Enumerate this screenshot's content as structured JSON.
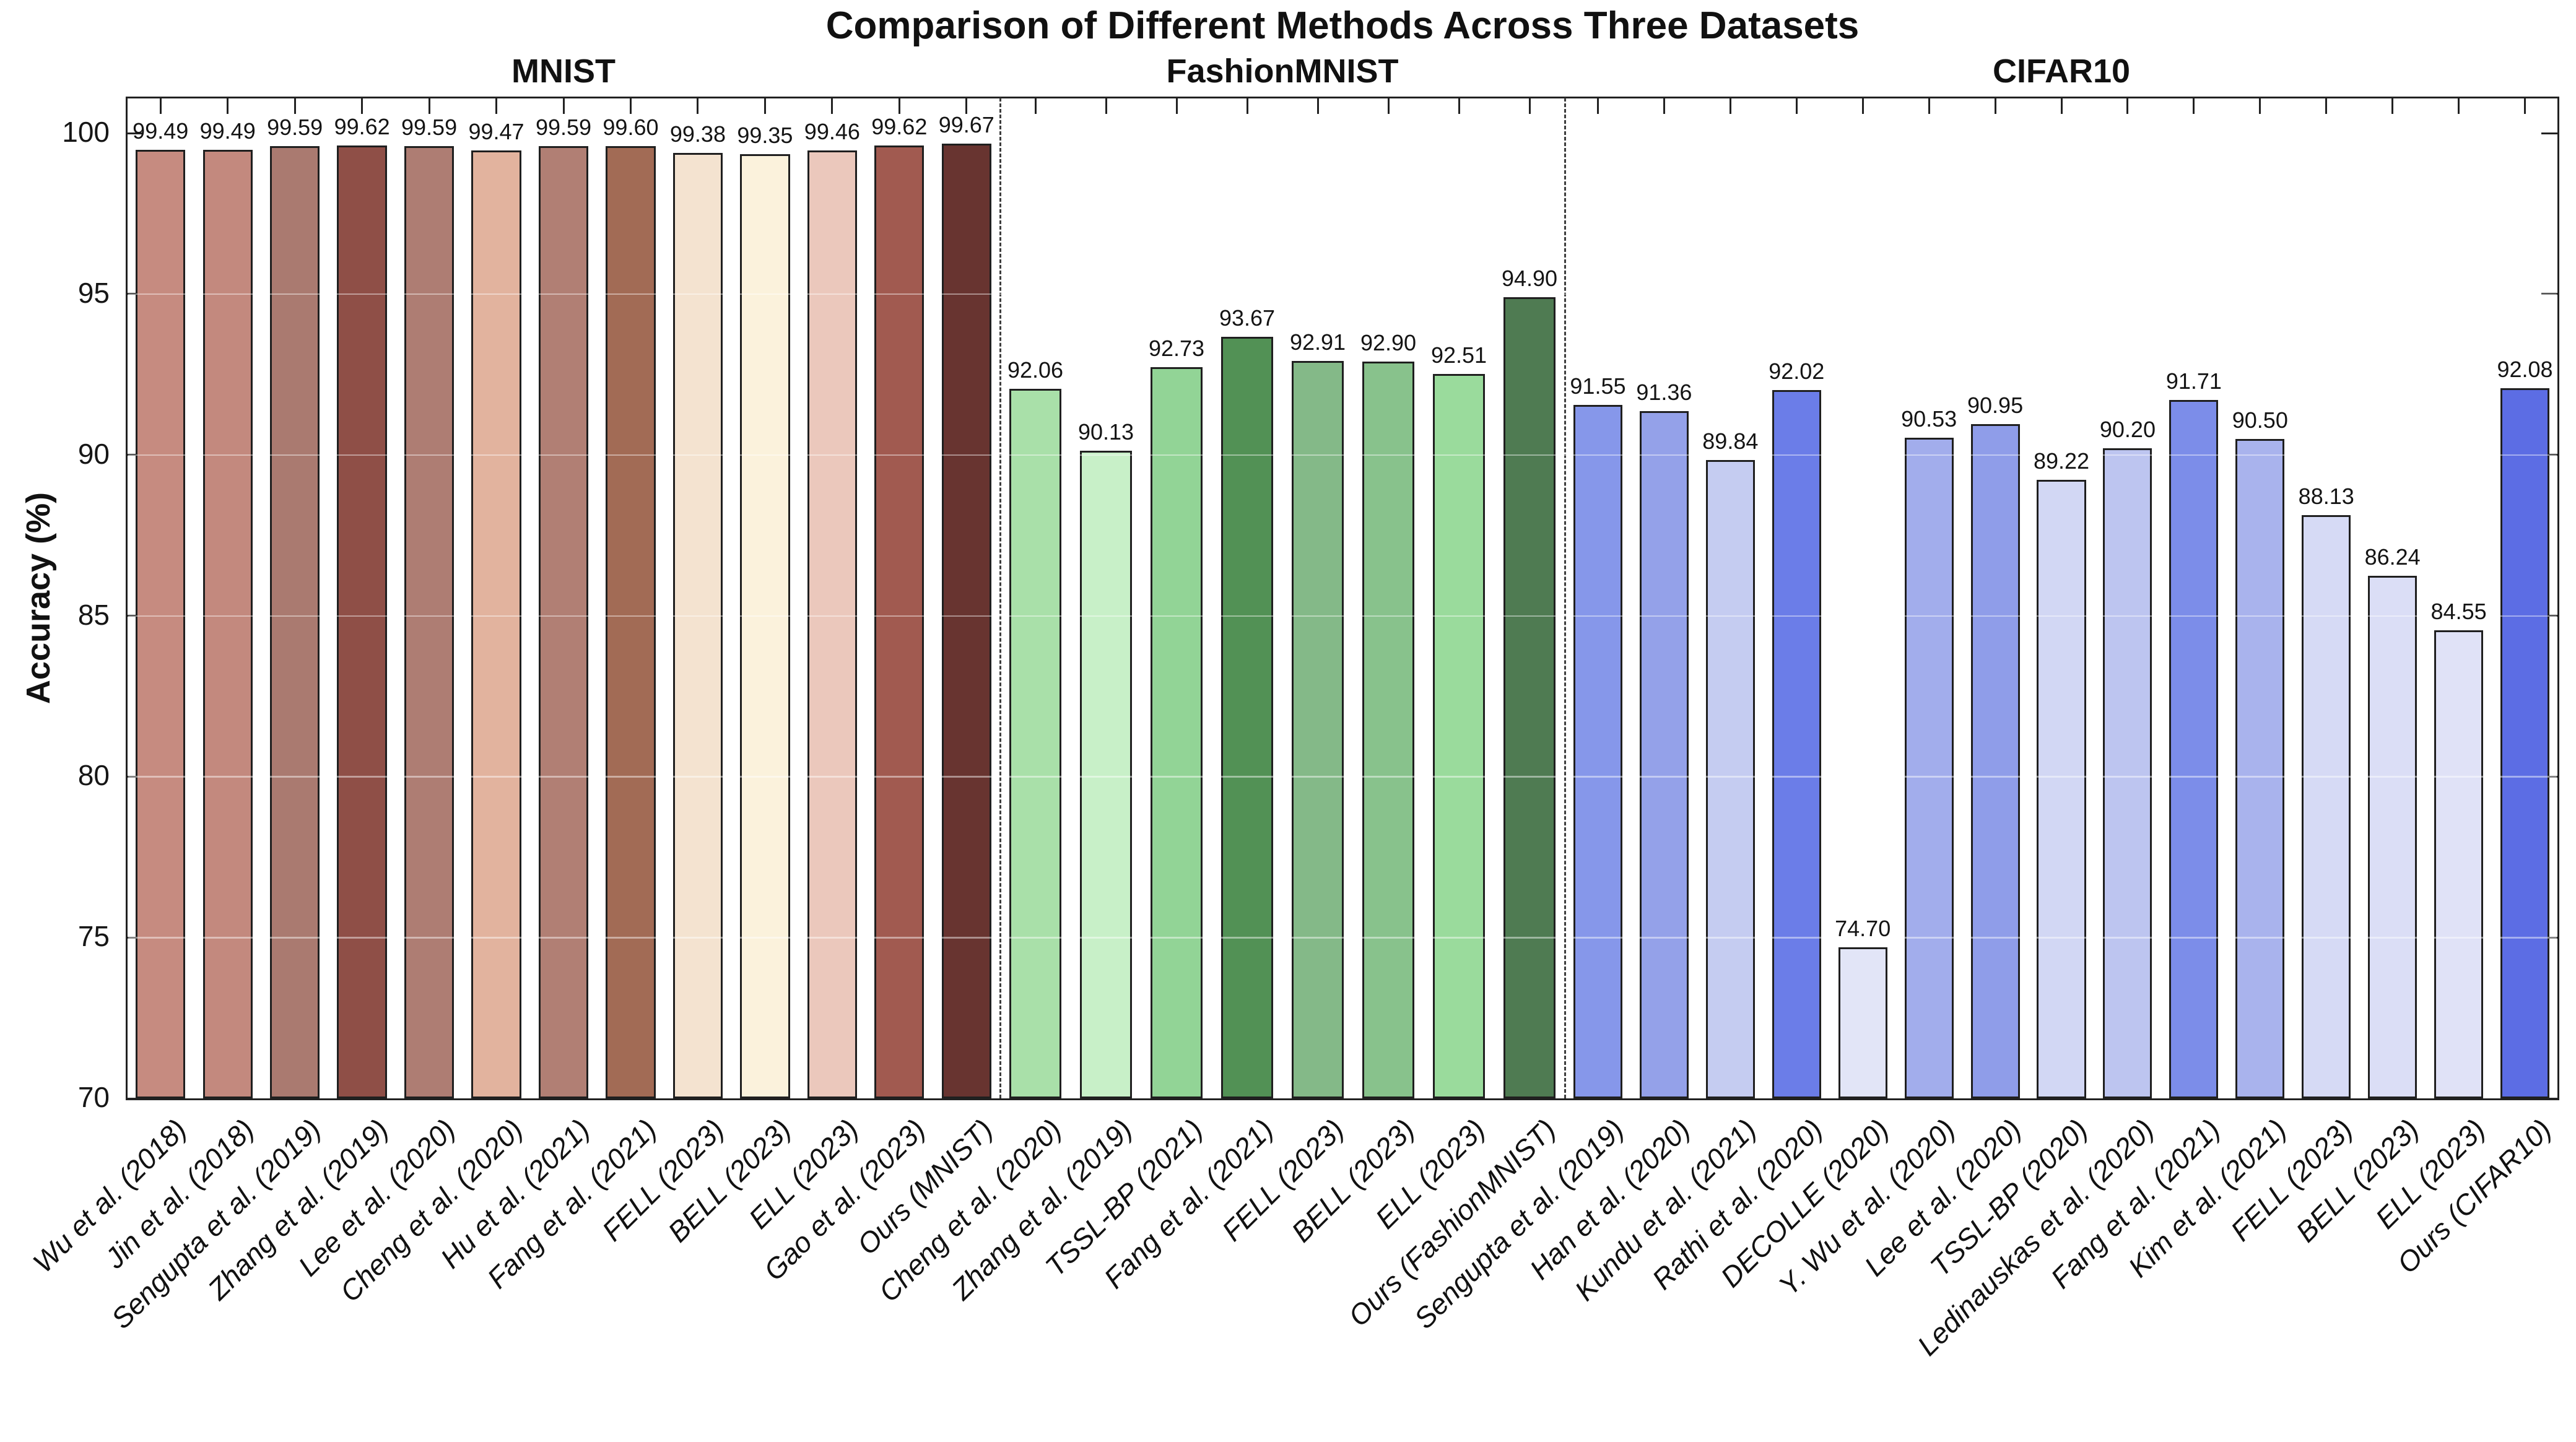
{
  "title": "Comparison of Different Methods Across Three Datasets",
  "ylabel": "Accuracy (%)",
  "colors": {
    "axis": "#222222",
    "bar_border": "#1f1f1f",
    "separator": "#3d3d3d",
    "tick": "#222222",
    "gridline_overlay": "rgba(255,255,255,0.45)"
  },
  "chart_data": {
    "type": "bar",
    "title": "Comparison of Different Methods Across Three Datasets",
    "xlabel": "",
    "ylabel": "Accuracy (%)",
    "ylim": [
      70,
      101.1
    ],
    "yticks": [
      70,
      75,
      80,
      85,
      90,
      95,
      100
    ],
    "grid": "subtle white horizontal lines over bars",
    "legend": "none",
    "value_labels": "above each bar, 2 decimals",
    "groups": [
      {
        "name": "MNIST",
        "bars": [
          {
            "label": "Wu et al. (2018)",
            "value": 99.49,
            "color": "#c68b80"
          },
          {
            "label": "Jin et al. (2018)",
            "value": 99.49,
            "color": "#c3897e"
          },
          {
            "label": "Sengupta et al. (2019)",
            "value": 99.59,
            "color": "#aa7a70"
          },
          {
            "label": "Zhang et al. (2019)",
            "value": 99.62,
            "color": "#8f4f47"
          },
          {
            "label": "Lee et al. (2020)",
            "value": 99.59,
            "color": "#ae7d73"
          },
          {
            "label": "Cheng et al. (2020)",
            "value": 99.47,
            "color": "#e2b39e"
          },
          {
            "label": "Hu et al. (2021)",
            "value": 99.59,
            "color": "#b17f74"
          },
          {
            "label": "Fang et al. (2021)",
            "value": 99.6,
            "color": "#a26b55"
          },
          {
            "label": "FELL (2023)",
            "value": 99.38,
            "color": "#f4e3d0"
          },
          {
            "label": "BELL (2023)",
            "value": 99.35,
            "color": "#fbf2dc"
          },
          {
            "label": "ELL (2023)",
            "value": 99.46,
            "color": "#ebc8bc"
          },
          {
            "label": "Gao et al. (2023)",
            "value": 99.62,
            "color": "#a15a50"
          },
          {
            "label": "Ours (MNIST)",
            "value": 99.67,
            "color": "#683430"
          }
        ]
      },
      {
        "name": "FashionMNIST",
        "bars": [
          {
            "label": "Cheng et al. (2020)",
            "value": 92.06,
            "color": "#a9e0a9"
          },
          {
            "label": "Zhang et al. (2019)",
            "value": 90.13,
            "color": "#c8f0c8"
          },
          {
            "label": "TSSL-BP (2021)",
            "value": 92.73,
            "color": "#92d496"
          },
          {
            "label": "Fang et al. (2021)",
            "value": 93.67,
            "color": "#529155"
          },
          {
            "label": "FELL (2023)",
            "value": 92.91,
            "color": "#84b988"
          },
          {
            "label": "BELL (2023)",
            "value": 92.9,
            "color": "#88c28c"
          },
          {
            "label": "ELL (2023)",
            "value": 92.51,
            "color": "#9adb9c"
          },
          {
            "label": "Ours (FashionMNIST)",
            "value": 94.9,
            "color": "#4f7b52"
          }
        ]
      },
      {
        "name": "CIFAR10",
        "bars": [
          {
            "label": "Sengupta et al. (2019)",
            "value": 91.55,
            "color": "#8697ea"
          },
          {
            "label": "Han et al. (2020)",
            "value": 91.36,
            "color": "#94a1e9"
          },
          {
            "label": "Kundu et al. (2021)",
            "value": 89.84,
            "color": "#c5ccf1"
          },
          {
            "label": "Rathi et al. (2020)",
            "value": 92.02,
            "color": "#6b7de8"
          },
          {
            "label": "DECOLLE (2020)",
            "value": 74.7,
            "color": "#e2e5f7"
          },
          {
            "label": "Y. Wu et al. (2020)",
            "value": 90.53,
            "color": "#a2adec"
          },
          {
            "label": "Lee et al. (2020)",
            "value": 90.95,
            "color": "#8f9de9"
          },
          {
            "label": "TSSL-BP (2020)",
            "value": 89.22,
            "color": "#d2d7f4"
          },
          {
            "label": "Ledinauskas et al. (2020)",
            "value": 90.2,
            "color": "#bdc5f0"
          },
          {
            "label": "Fang et al. (2021)",
            "value": 91.71,
            "color": "#7c8de9"
          },
          {
            "label": "Kim et al. (2021)",
            "value": 90.5,
            "color": "#a9b3ed"
          },
          {
            "label": "FELL (2023)",
            "value": 88.13,
            "color": "#d6daf5"
          },
          {
            "label": "BELL (2023)",
            "value": 86.24,
            "color": "#dbdef6"
          },
          {
            "label": "ELL (2023)",
            "value": 84.55,
            "color": "#e0e2f7"
          },
          {
            "label": "Ours (CIFAR10)",
            "value": 92.08,
            "color": "#5c6de4"
          }
        ]
      }
    ]
  }
}
